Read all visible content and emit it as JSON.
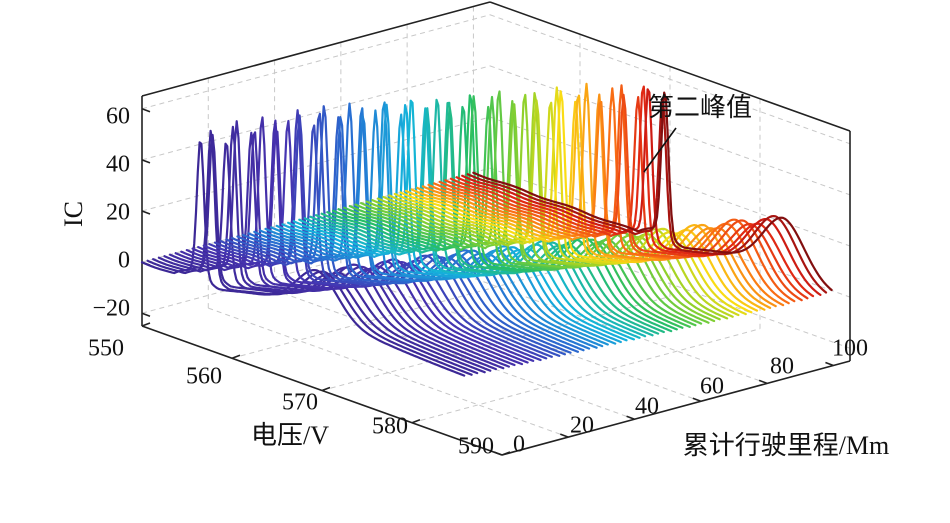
{
  "chart_data": {
    "type": "line3d",
    "zlabel": "IC",
    "xlabel": "电压/V",
    "ylabel": "累计行驶里程/Mm",
    "zticks": [
      "60",
      "40",
      "20",
      "0",
      "−20"
    ],
    "zlim": [
      -25,
      65
    ],
    "xticks": [
      "550",
      "560",
      "570",
      "580",
      "590"
    ],
    "xlim": [
      550,
      590
    ],
    "yticks": [
      "0",
      "20",
      "40",
      "60",
      "80",
      "100"
    ],
    "ylim": [
      0,
      105
    ],
    "grid": true,
    "annotation": "第二峰值",
    "colormap": "parula-jet (purple → blue → cyan → green → yellow → red)",
    "series_count": 60,
    "series": [
      {
        "mileage_Mm": 0,
        "first_peak_V": 556.5,
        "first_peak_IC": 52,
        "second_peak_V": 569.5,
        "second_peak_IC": 16
      },
      {
        "mileage_Mm": 10,
        "first_peak_V": 558.0,
        "first_peak_IC": 55,
        "second_peak_V": 571.0,
        "second_peak_IC": 17
      },
      {
        "mileage_Mm": 20,
        "first_peak_V": 559.5,
        "first_peak_IC": 57,
        "second_peak_V": 572.5,
        "second_peak_IC": 18
      },
      {
        "mileage_Mm": 30,
        "first_peak_V": 561.0,
        "first_peak_IC": 58,
        "second_peak_V": 574.0,
        "second_peak_IC": 19
      },
      {
        "mileage_Mm": 40,
        "first_peak_V": 562.5,
        "first_peak_IC": 58,
        "second_peak_V": 575.5,
        "second_peak_IC": 19
      },
      {
        "mileage_Mm": 50,
        "first_peak_V": 564.0,
        "first_peak_IC": 58,
        "second_peak_V": 577.0,
        "second_peak_IC": 20
      },
      {
        "mileage_Mm": 60,
        "first_peak_V": 565.5,
        "first_peak_IC": 58,
        "second_peak_V": 578.5,
        "second_peak_IC": 20
      },
      {
        "mileage_Mm": 70,
        "first_peak_V": 567.0,
        "first_peak_IC": 57,
        "second_peak_V": 580.0,
        "second_peak_IC": 21
      },
      {
        "mileage_Mm": 80,
        "first_peak_V": 568.5,
        "first_peak_IC": 57,
        "second_peak_V": 581.5,
        "second_peak_IC": 21
      },
      {
        "mileage_Mm": 90,
        "first_peak_V": 570.0,
        "first_peak_IC": 56,
        "second_peak_V": 583.0,
        "second_peak_IC": 22
      },
      {
        "mileage_Mm": 100,
        "first_peak_V": 571.5,
        "first_peak_IC": 55,
        "second_peak_V": 584.5,
        "second_peak_IC": 22
      }
    ]
  }
}
